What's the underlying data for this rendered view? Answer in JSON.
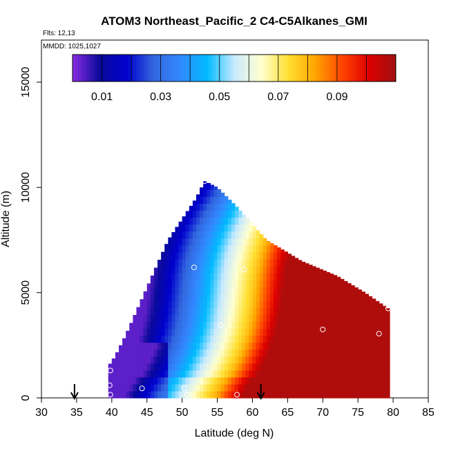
{
  "chart_data": {
    "type": "heatmap",
    "title": "ATOM3 Northeast_Pacific_2 C4-C5Alkanes_GMI",
    "flights_label": "Flts: 12,13",
    "dates_label": "MMDD: 1025,1027",
    "xlabel": "Latitude (deg N)",
    "ylabel": "Altitude (m)",
    "xlim": [
      30,
      85
    ],
    "ylim": [
      0,
      17000
    ],
    "x_ticks": [
      "30",
      "35",
      "40",
      "45",
      "50",
      "55",
      "60",
      "65",
      "70",
      "75",
      "80",
      "85"
    ],
    "y_ticks": [
      "0",
      "5000",
      "10000",
      "15000"
    ],
    "colorbar": {
      "range": [
        0.0,
        0.11
      ],
      "tick_values": [
        0.01,
        0.03,
        0.05,
        0.07,
        0.09
      ],
      "tick_labels": [
        "0.01",
        "0.03",
        "0.05",
        "0.07",
        "0.09"
      ],
      "colors": [
        "#8a2be2",
        "#0a0a9a",
        "#0000cd",
        "#3366dd",
        "#3388ff",
        "#00bbff",
        "#c8eaff",
        "#ffffd0",
        "#ffe033",
        "#ffa500",
        "#ff4400",
        "#dd0000",
        "#a01010"
      ]
    },
    "curtain_envelope": [
      {
        "lat": 39.5,
        "alt_top": 1500
      },
      {
        "lat": 40.5,
        "alt_top": 2000
      },
      {
        "lat": 42.0,
        "alt_top": 3000
      },
      {
        "lat": 44.0,
        "alt_top": 4500
      },
      {
        "lat": 46.0,
        "alt_top": 6000
      },
      {
        "lat": 48.0,
        "alt_top": 7500
      },
      {
        "lat": 50.0,
        "alt_top": 8500
      },
      {
        "lat": 52.0,
        "alt_top": 9500
      },
      {
        "lat": 53.2,
        "alt_top": 10300
      },
      {
        "lat": 55.0,
        "alt_top": 10000
      },
      {
        "lat": 58.0,
        "alt_top": 9000
      },
      {
        "lat": 62.0,
        "alt_top": 7500
      },
      {
        "lat": 67.0,
        "alt_top": 6500
      },
      {
        "lat": 72.0,
        "alt_top": 5800
      },
      {
        "lat": 76.0,
        "alt_top": 5000
      },
      {
        "lat": 79.5,
        "alt_top": 4200
      }
    ],
    "sample_points": [
      {
        "lat": 39.8,
        "alt": 1300
      },
      {
        "lat": 39.7,
        "alt": 600
      },
      {
        "lat": 39.8,
        "alt": 150
      },
      {
        "lat": 44.3,
        "alt": 450
      },
      {
        "lat": 50.3,
        "alt": 450
      },
      {
        "lat": 50.7,
        "alt": 150
      },
      {
        "lat": 51.7,
        "alt": 6200
      },
      {
        "lat": 53.2,
        "alt": 10300
      },
      {
        "lat": 55.5,
        "alt": 3450
      },
      {
        "lat": 57.8,
        "alt": 150
      },
      {
        "lat": 58.8,
        "alt": 6100
      },
      {
        "lat": 70.0,
        "alt": 3250
      },
      {
        "lat": 78.0,
        "alt": 3050
      },
      {
        "lat": 79.3,
        "alt": 4250
      }
    ],
    "markers": [
      {
        "type": "arrow-down",
        "lat": 34.7
      },
      {
        "type": "arrow-down",
        "lat": 61.2
      }
    ]
  }
}
